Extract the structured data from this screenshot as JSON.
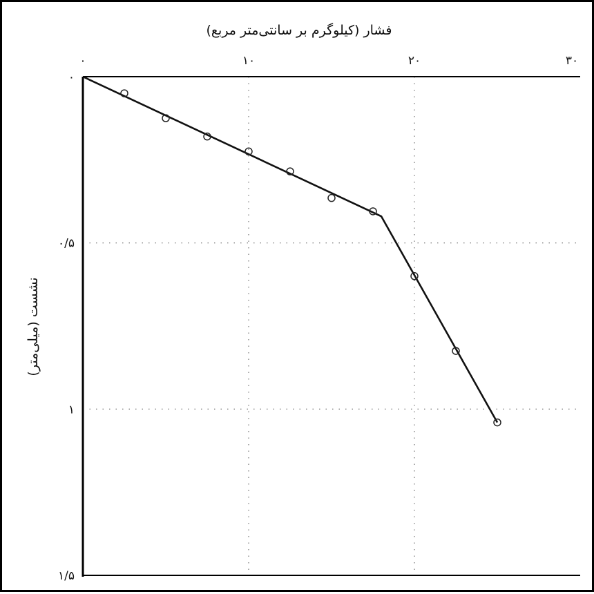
{
  "chart_data": {
    "type": "scatter",
    "xlabel": "فشار (کیلوگرم بر سانتی‌متر مربع)",
    "ylabel": "نشست (میلی‌متر)",
    "x_axis_position": "top",
    "y_axis_direction": "downward",
    "xlim": [
      0,
      30
    ],
    "ylim": [
      0,
      1.5
    ],
    "x_ticks": [
      {
        "value": 0,
        "label": "۰"
      },
      {
        "value": 10,
        "label": "۱۰"
      },
      {
        "value": 20,
        "label": "۲۰"
      },
      {
        "value": 30,
        "label": "۳۰"
      }
    ],
    "y_ticks": [
      {
        "value": 0,
        "label": "۰"
      },
      {
        "value": 0.5,
        "label": "۰/۵"
      },
      {
        "value": 1,
        "label": "۱"
      },
      {
        "value": 1.5,
        "label": "۱/۵"
      }
    ],
    "grid": "dotted",
    "series": [
      {
        "kind": "points",
        "marker": "circle",
        "x": [
          2.5,
          5,
          7.5,
          10,
          12.5,
          15,
          17.5,
          20,
          22.5,
          25
        ],
        "y": [
          0.05,
          0.125,
          0.18,
          0.225,
          0.285,
          0.365,
          0.405,
          0.6,
          0.825,
          1.04
        ]
      },
      {
        "kind": "line",
        "x": [
          0,
          18,
          25
        ],
        "y": [
          0,
          0.42,
          1.04
        ]
      }
    ]
  }
}
